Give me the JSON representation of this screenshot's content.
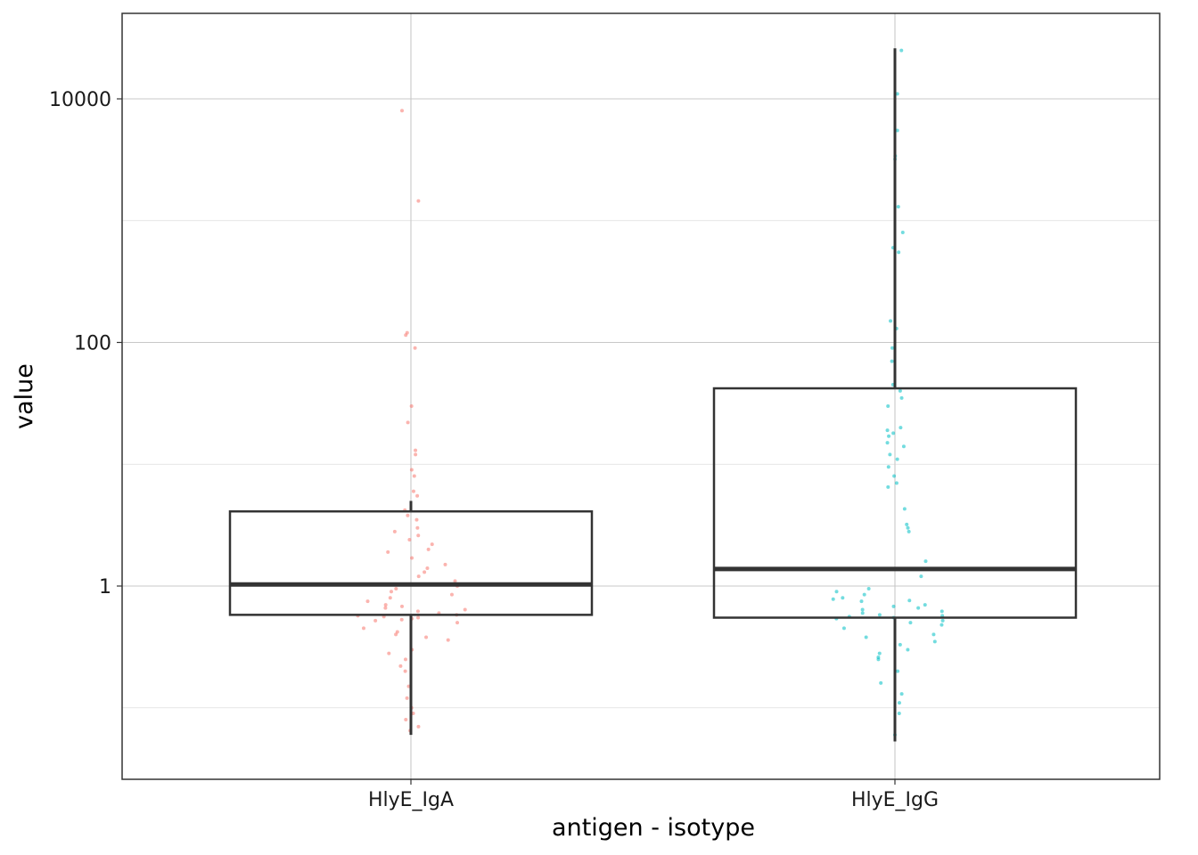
{
  "chart_data": {
    "type": "box",
    "xlabel": "antigen - isotype",
    "ylabel": "value",
    "y_scale": "log10",
    "ylim": [
      0.05,
      50000
    ],
    "y_ticks": [
      1,
      100,
      10000
    ],
    "y_tick_labels": [
      "1",
      "100",
      "10000"
    ],
    "grid": true,
    "categories": [
      "HlyE_IgA",
      "HlyE_IgG"
    ],
    "boxes": [
      {
        "category": "HlyE_IgA",
        "whisker_low": 0.06,
        "q1": 0.58,
        "median": 1.03,
        "q3": 4.1,
        "whisker_high": 5.0,
        "color": "#F8766D"
      },
      {
        "category": "HlyE_IgG",
        "whisker_low": 0.053,
        "q1": 0.55,
        "median": 1.38,
        "q3": 42,
        "whisker_high": 26000,
        "color": "#00BFC4"
      }
    ],
    "points": [
      {
        "category": "HlyE_IgA",
        "color": "#F8766D",
        "values": [
          8000,
          1450,
          120,
          115,
          90,
          30,
          22,
          13,
          12,
          9,
          8,
          6,
          5.5,
          4.2,
          3.8,
          3.5,
          3.0,
          2.8,
          2.6,
          2.4,
          2.2,
          2.0,
          1.9,
          1.7,
          1.5,
          1.4,
          1.3,
          1.2,
          1.1,
          1.0,
          0.95,
          0.9,
          0.85,
          0.8,
          0.75,
          0.7,
          0.68,
          0.66,
          0.64,
          0.62,
          0.6,
          0.58,
          0.57,
          0.56,
          0.55,
          0.54,
          0.53,
          0.52,
          0.5,
          0.45,
          0.42,
          0.4,
          0.38,
          0.36,
          0.3,
          0.28,
          0.25,
          0.22,
          0.2,
          0.15,
          0.12,
          0.1,
          0.09,
          0.08,
          0.07,
          0.065
        ]
      },
      {
        "category": "HlyE_IgG",
        "color": "#00BFC4",
        "values": [
          25000,
          11000,
          5500,
          3400,
          3200,
          1300,
          800,
          600,
          550,
          150,
          130,
          90,
          70,
          45,
          40,
          35,
          30,
          20,
          19,
          18,
          17,
          15,
          14,
          12,
          11,
          9.5,
          8,
          7,
          6.5,
          4.3,
          3.2,
          3.0,
          2.8,
          1.6,
          1.2,
          0.95,
          0.9,
          0.85,
          0.8,
          0.78,
          0.76,
          0.75,
          0.7,
          0.68,
          0.66,
          0.64,
          0.62,
          0.6,
          0.58,
          0.57,
          0.56,
          0.55,
          0.54,
          0.52,
          0.5,
          0.48,
          0.45,
          0.4,
          0.38,
          0.35,
          0.33,
          0.3,
          0.28,
          0.26,
          0.25,
          0.2,
          0.16,
          0.13,
          0.11,
          0.09,
          0.06
        ]
      }
    ]
  }
}
